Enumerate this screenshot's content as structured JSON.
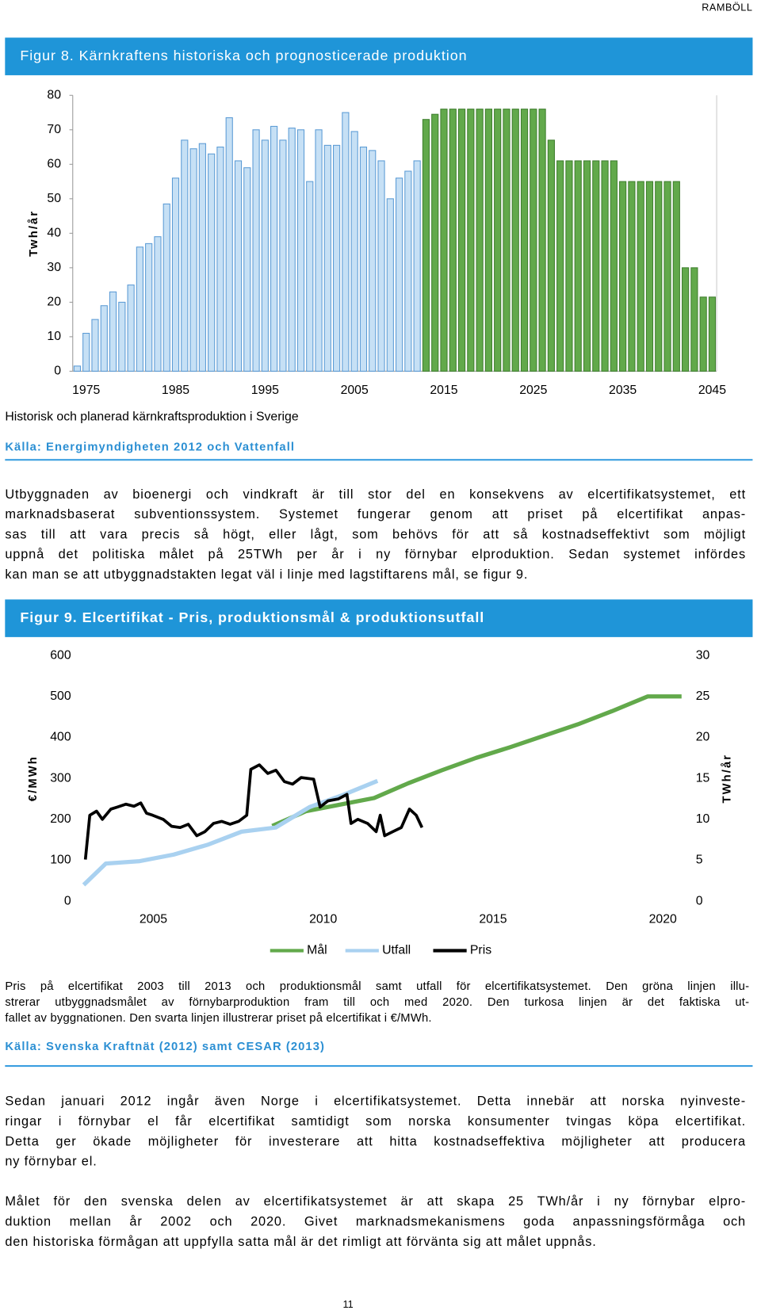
{
  "header": "RAMBÖLL",
  "chart_data": [
    {
      "type": "bar",
      "title": "Figur 8. Kärnkraftens historiska och prognosticerade produktion",
      "ylabel": "Twh/år",
      "categories": [
        null,
        "1975",
        null,
        null,
        null,
        null,
        null,
        null,
        null,
        null,
        null,
        "1985",
        null,
        null,
        null,
        null,
        null,
        null,
        null,
        null,
        null,
        "1995",
        null,
        null,
        null,
        null,
        null,
        null,
        null,
        null,
        null,
        "2005",
        null,
        null,
        null,
        null,
        null,
        null,
        null,
        null,
        null,
        "2015",
        null,
        null,
        null,
        null,
        null,
        null,
        null,
        null,
        null,
        "2025",
        null,
        null,
        null,
        null,
        null,
        null,
        null,
        null,
        null,
        "2035",
        null,
        null,
        null,
        null,
        null,
        null,
        null,
        null,
        null,
        "2045"
      ],
      "series": [
        {
          "color": "#c6e0f5",
          "edgecolor": "#5b9bd5",
          "values": [
            1.5,
            11,
            15,
            19,
            23,
            20,
            25,
            36,
            37,
            39,
            48.5,
            56,
            67,
            64.5,
            66,
            63,
            65,
            73.5,
            61,
            59,
            70,
            67,
            71,
            67,
            70.5,
            70,
            55,
            70,
            65.5,
            65.5,
            75,
            69.5,
            65,
            64,
            61,
            50,
            56,
            58,
            61,
            null,
            null,
            null,
            null,
            null,
            null,
            null,
            null,
            null,
            null,
            null,
            null,
            null,
            null,
            null,
            null,
            null,
            null,
            null,
            null,
            null,
            null,
            null,
            null,
            null,
            null,
            null,
            null,
            null,
            null,
            null,
            null,
            null
          ]
        },
        {
          "color": "#62a94b",
          "edgecolor": "#3f7f2e",
          "values": [
            null,
            null,
            null,
            null,
            null,
            null,
            null,
            null,
            null,
            null,
            null,
            null,
            null,
            null,
            null,
            null,
            null,
            null,
            null,
            null,
            null,
            null,
            null,
            null,
            null,
            null,
            null,
            null,
            null,
            null,
            null,
            null,
            null,
            null,
            null,
            null,
            null,
            null,
            null,
            73,
            74.5,
            76,
            76,
            76,
            76,
            76,
            76,
            76,
            76,
            76,
            76,
            76,
            76,
            67,
            61,
            61,
            61,
            61,
            61,
            61,
            61,
            55,
            55,
            55,
            55,
            55,
            55,
            55,
            30,
            30,
            21.5,
            21.5
          ]
        }
      ],
      "ylim": [
        0,
        80
      ],
      "yticks": [
        0,
        10,
        20,
        30,
        40,
        50,
        60,
        70,
        80
      ],
      "caption": "Historisk och planerad kärnkraftsproduktion i Sverige",
      "source": "Källa: Energimyndigheten 2012 och Vattenfall"
    },
    {
      "type": "line",
      "title": "Figur 9. Elcertifikat - Pris, produktionsmål & produktionsutfall",
      "ylabel": "€/MWh",
      "y2label": "TWh/år",
      "xlim": [
        2002.85,
        2020.55
      ],
      "xticks": [
        2005,
        2010,
        2015,
        2020
      ],
      "ylim": [
        0,
        600
      ],
      "yticks": [
        0,
        100,
        200,
        300,
        400,
        500,
        600
      ],
      "y2lim": [
        0,
        30
      ],
      "y2ticks": [
        0,
        5,
        10,
        15,
        20,
        25,
        30
      ],
      "series": [
        {
          "name": "Mål",
          "color": "#62a94b",
          "axis": "y2",
          "x": [
            2008.5,
            2009.5,
            2010.5,
            2011.5,
            2012.5,
            2013.5,
            2014.5,
            2015.5,
            2016.5,
            2017.5,
            2018.5,
            2019.55,
            2020.55
          ],
          "values": [
            9.2,
            11,
            11.8,
            12.6,
            14.4,
            16,
            17.5,
            18.8,
            20.2,
            21.6,
            23.2,
            25,
            25
          ]
        },
        {
          "name": "Utfall",
          "color": "#a9d1f0",
          "axis": "y2",
          "x": [
            2002.95,
            2003.6,
            2004.6,
            2005.6,
            2006.6,
            2007.6,
            2008.6,
            2009.6,
            2010.6,
            2011.6
          ],
          "values": [
            2,
            4.6,
            4.9,
            5.7,
            6.9,
            8.5,
            9,
            11.5,
            13,
            14.7
          ]
        },
        {
          "name": "Pris",
          "color": "#000000",
          "x": [
            2003.0,
            2003.13,
            2003.33,
            2003.5,
            2003.75,
            2003.94,
            2004.19,
            2004.43,
            2004.63,
            2004.8,
            2004.98,
            2005.29,
            2005.54,
            2005.79,
            2006.03,
            2006.28,
            2006.52,
            2006.77,
            2007.01,
            2007.26,
            2007.51,
            2007.75,
            2007.87,
            2008.12,
            2008.37,
            2008.61,
            2008.86,
            2009.1,
            2009.35,
            2009.72,
            2009.91,
            2010.14,
            2010.45,
            2010.7,
            2010.82,
            2011.02,
            2011.31,
            2011.56,
            2011.68,
            2011.81,
            2012.05,
            2012.3,
            2012.54,
            2012.74,
            2012.91
          ],
          "values": [
            102,
            210,
            220,
            200,
            225,
            230,
            237,
            232,
            240,
            215,
            210,
            200,
            183,
            180,
            188,
            160,
            170,
            190,
            195,
            188,
            195,
            210,
            322,
            333,
            312,
            320,
            292,
            286,
            302,
            298,
            230,
            245,
            250,
            261,
            190,
            200,
            190,
            170,
            210,
            160,
            170,
            180,
            225,
            210,
            180
          ]
        }
      ],
      "caption_lines": [
        "Pris på elcertifikat 2003 till 2013 och produktionsmål samt utfall för elcertifikatsystemet. Den gröna linjen illu-",
        "strerar utbyggnadsmålet av förnybarproduktion fram till och med 2020. Den turkosa linjen är det faktiska ut-",
        "fallet av byggnationen. Den svarta linjen illustrerar priset på elcertifikat i €/MWh."
      ],
      "source": "Källa: Svenska Kraftnät (2012) samt CESAR (2013)"
    }
  ],
  "paragraphs": [
    [
      "Utbyggnaden av bioenergi och vindkraft är till stor del en konsekvens av elcertifikatsystemet, ett",
      "marknadsbaserat subventionssystem. Systemet fungerar genom att priset på elcertifikat anpas-",
      "sas till att vara precis så högt, eller lågt, som behövs för att så kostnadseffektivt som möjligt",
      "uppnå det politiska målet på 25TWh per år i ny förnybar elproduktion. Sedan systemet infördes",
      "kan man se att utbyggnadstakten legat väl i linje med lagstiftarens mål, se figur 9."
    ],
    [
      "Sedan januari 2012 ingår även Norge i elcertifikatsystemet. Detta innebär att norska nyinveste-",
      "ringar i förnybar el får elcertifikat samtidigt som norska konsumenter tvingas köpa elcertifikat.",
      "Detta ger ökade möjligheter för investerare att hitta kostnadseffektiva möjligheter att producera",
      "ny förnybar el."
    ],
    [
      "Målet för den svenska delen av elcertifikatsystemet är att skapa 25 TWh/år i ny förnybar elpro-",
      "duktion mellan år 2002 och 2020. Givet marknadsmekanismens goda anpassningsförmåga och",
      "den historiska förmågan att uppfylla satta mål är det rimligt att förvänta sig att målet uppnås."
    ]
  ],
  "page_number": "11"
}
